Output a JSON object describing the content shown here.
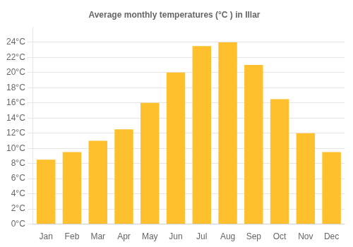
{
  "chart_data": {
    "type": "bar",
    "title": "Average monthly temperatures (°C ) in Illar",
    "categories": [
      "Jan",
      "Feb",
      "Mar",
      "Apr",
      "May",
      "Jun",
      "Jul",
      "Aug",
      "Sep",
      "Oct",
      "Nov",
      "Dec"
    ],
    "values": [
      8.5,
      9.5,
      11.0,
      12.5,
      16.0,
      20.0,
      23.5,
      24.0,
      21.0,
      16.5,
      12.0,
      9.5
    ],
    "color": "#FFC02E",
    "ylim": [
      0,
      26
    ],
    "yticks": [
      {
        "value": 0,
        "label": "0°C"
      },
      {
        "value": 2,
        "label": "2°C"
      },
      {
        "value": 4,
        "label": "4°C"
      },
      {
        "value": 6,
        "label": "6°C"
      },
      {
        "value": 8,
        "label": "8°C"
      },
      {
        "value": 10,
        "label": "10°C"
      },
      {
        "value": 12,
        "label": "12°C"
      },
      {
        "value": 14,
        "label": "14°C"
      },
      {
        "value": 16,
        "label": "16°C"
      },
      {
        "value": 18,
        "label": "18°C"
      },
      {
        "value": 20,
        "label": "20°C"
      },
      {
        "value": 22,
        "label": "22°C"
      },
      {
        "value": 24,
        "label": "24°C"
      }
    ],
    "grid": true
  }
}
